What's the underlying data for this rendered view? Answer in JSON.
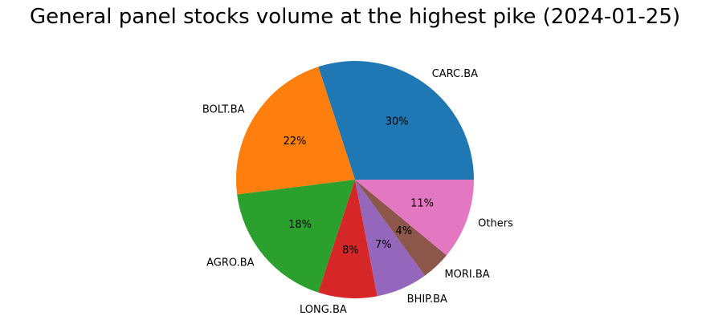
{
  "chart_data": {
    "type": "pie",
    "title": "General panel stocks volume at the highest pike (2024-01-25)",
    "slices": [
      {
        "label": "CARC.BA",
        "value": 30,
        "pct_label": "30%",
        "color": "#1f77b4"
      },
      {
        "label": "BOLT.BA",
        "value": 22,
        "pct_label": "22%",
        "color": "#ff7f0e"
      },
      {
        "label": "AGRO.BA",
        "value": 18,
        "pct_label": "18%",
        "color": "#2ca02c"
      },
      {
        "label": "LONG.BA",
        "value": 8,
        "pct_label": "8%",
        "color": "#d62728"
      },
      {
        "label": "BHIP.BA",
        "value": 7,
        "pct_label": "7%",
        "color": "#9467bd"
      },
      {
        "label": "MORI.BA",
        "value": 4,
        "pct_label": "4%",
        "color": "#8c564b"
      },
      {
        "label": "Others",
        "value": 11,
        "pct_label": "11%",
        "color": "#e377c2"
      }
    ]
  }
}
